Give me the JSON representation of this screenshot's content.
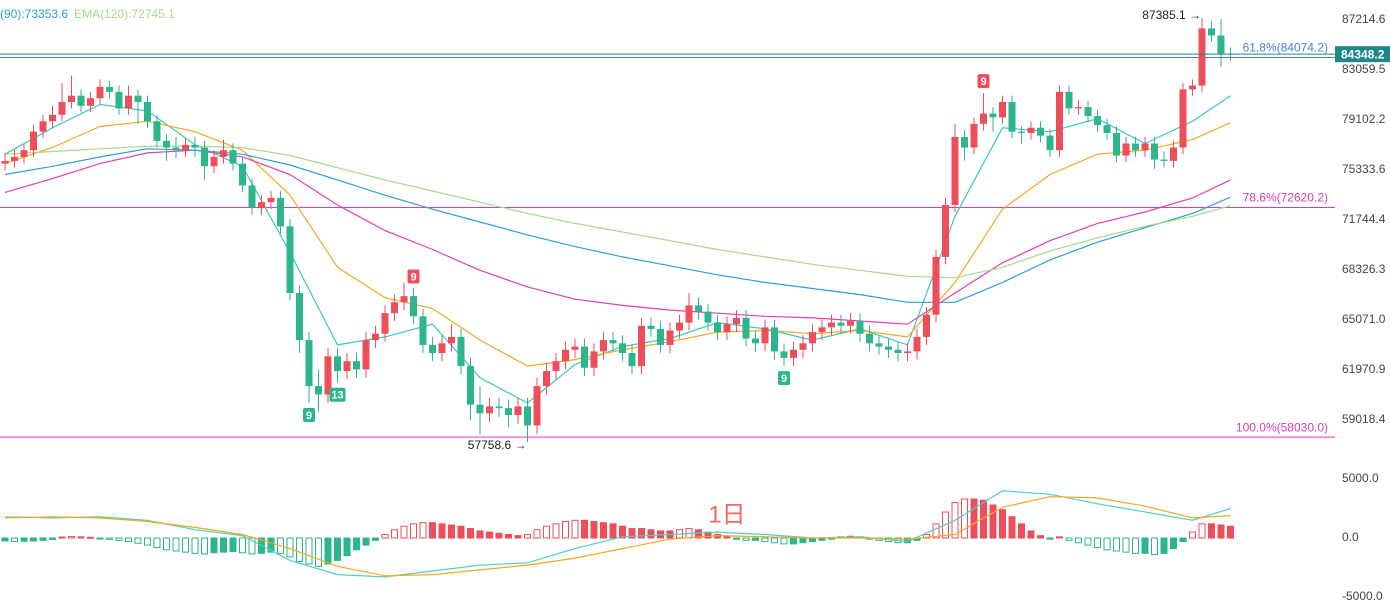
{
  "chart_data": {
    "type": "candlestick",
    "up_color": "#ee4d5a",
    "down_color": "#2db58e",
    "log_scale": true,
    "ylim": [
      56200,
      88930
    ],
    "yticks": [
      87214.6,
      83059.5,
      79102.2,
      75333.6,
      71744.4,
      68326.3,
      {
        "value": 65071,
        "label": "65071.0"
      },
      61970.9,
      59018.4
    ],
    "candles": [
      [
        75800,
        76600,
        75300,
        76000
      ],
      [
        76000,
        76800,
        75500,
        76300
      ],
      [
        76300,
        77300,
        75800,
        76800
      ],
      [
        76800,
        78700,
        76300,
        78200
      ],
      [
        78200,
        79500,
        77700,
        79000
      ],
      [
        79000,
        80200,
        78500,
        79500
      ],
      [
        79500,
        82000,
        79000,
        80500
      ],
      [
        80500,
        82600,
        80000,
        81000
      ],
      [
        81000,
        81500,
        79700,
        80200
      ],
      [
        80200,
        81300,
        79700,
        80800
      ],
      [
        80800,
        82300,
        80300,
        81700
      ],
      [
        81700,
        82200,
        80800,
        81300
      ],
      [
        81300,
        81800,
        79500,
        80000
      ],
      [
        80000,
        81800,
        79500,
        81000
      ],
      [
        81000,
        81500,
        78800,
        80500
      ],
      [
        80500,
        81000,
        78500,
        79000
      ],
      [
        79000,
        79500,
        77000,
        77500
      ],
      [
        77500,
        78000,
        76000,
        77000
      ],
      [
        77000,
        77800,
        76200,
        76800
      ],
      [
        76800,
        77700,
        76300,
        77200
      ],
      [
        77200,
        77800,
        76300,
        77000
      ],
      [
        77000,
        77500,
        74600,
        75600
      ],
      [
        75600,
        76800,
        75100,
        76300
      ],
      [
        76300,
        77600,
        75800,
        76800
      ],
      [
        76800,
        77300,
        75300,
        75800
      ],
      [
        75800,
        76300,
        73700,
        74200
      ],
      [
        74200,
        74700,
        72100,
        72600
      ],
      [
        72600,
        73500,
        72100,
        73000
      ],
      [
        73000,
        73800,
        72500,
        73300
      ],
      [
        73300,
        73800,
        70800,
        71300
      ],
      [
        71300,
        71800,
        66300,
        66800
      ],
      [
        66800,
        67300,
        63000,
        63800
      ],
      [
        63800,
        64300,
        60000,
        61000
      ],
      [
        61000,
        62000,
        59500,
        60500
      ],
      [
        60500,
        63300,
        60000,
        62800
      ],
      [
        62800,
        63300,
        61200,
        61900
      ],
      [
        61900,
        63000,
        61400,
        62500
      ],
      [
        62500,
        63000,
        61500,
        62000
      ],
      [
        62000,
        64300,
        61500,
        63800
      ],
      [
        63800,
        64700,
        63300,
        64200
      ],
      [
        64200,
        66000,
        63700,
        65500
      ],
      [
        65500,
        66700,
        65000,
        66200
      ],
      [
        66200,
        67500,
        65700,
        66600
      ],
      [
        66600,
        67100,
        64800,
        65300
      ],
      [
        65300,
        65800,
        63000,
        63500
      ],
      [
        63500,
        64000,
        62500,
        63000
      ],
      [
        63000,
        64100,
        62500,
        63600
      ],
      [
        63600,
        64800,
        63100,
        64000
      ],
      [
        64000,
        64500,
        61700,
        62200
      ],
      [
        62200,
        62700,
        59000,
        59900
      ],
      [
        59900,
        61000,
        58200,
        59400
      ],
      [
        59400,
        60300,
        58900,
        59800
      ],
      [
        59800,
        60300,
        59200,
        59700
      ],
      [
        59700,
        60200,
        58600,
        59300
      ],
      [
        59300,
        60300,
        58800,
        59800
      ],
      [
        59800,
        60300,
        57758.6,
        58700
      ],
      [
        58700,
        61500,
        58200,
        61000
      ],
      [
        61000,
        62400,
        60500,
        61900
      ],
      [
        61900,
        63000,
        61400,
        62500
      ],
      [
        62500,
        63700,
        62000,
        63200
      ],
      [
        63200,
        63900,
        62700,
        63400
      ],
      [
        63400,
        63900,
        61600,
        62100
      ],
      [
        62100,
        63600,
        61600,
        63100
      ],
      [
        63100,
        64300,
        62600,
        63800
      ],
      [
        63800,
        64300,
        63100,
        63600
      ],
      [
        63600,
        64100,
        62500,
        63000
      ],
      [
        63000,
        63500,
        61700,
        62200
      ],
      [
        62200,
        65200,
        61700,
        64700
      ],
      [
        64700,
        65200,
        64000,
        64500
      ],
      [
        64500,
        65000,
        63000,
        63500
      ],
      [
        63500,
        64900,
        63000,
        64400
      ],
      [
        64400,
        65400,
        63900,
        64900
      ],
      [
        64900,
        66800,
        64400,
        66000
      ],
      [
        66000,
        66500,
        65100,
        65600
      ],
      [
        65600,
        66100,
        64400,
        64900
      ],
      [
        64900,
        65400,
        63800,
        64300
      ],
      [
        64300,
        65300,
        63800,
        64800
      ],
      [
        64800,
        65700,
        64300,
        65200
      ],
      [
        65200,
        65700,
        63400,
        63900
      ],
      [
        63900,
        64400,
        63100,
        63600
      ],
      [
        63600,
        65100,
        63100,
        64600
      ],
      [
        64600,
        65100,
        62600,
        63100
      ],
      [
        63100,
        63600,
        62200,
        62700
      ],
      [
        62700,
        63700,
        62200,
        63200
      ],
      [
        63200,
        64100,
        62700,
        63600
      ],
      [
        63600,
        64800,
        63100,
        64300
      ],
      [
        64300,
        65100,
        63800,
        64600
      ],
      [
        64600,
        65400,
        64100,
        64900
      ],
      [
        64900,
        65400,
        64200,
        64700
      ],
      [
        64700,
        65500,
        64200,
        65000
      ],
      [
        65000,
        65500,
        63700,
        64200
      ],
      [
        64200,
        64700,
        63100,
        63600
      ],
      [
        63600,
        64100,
        62900,
        63400
      ],
      [
        63400,
        63900,
        62700,
        63200
      ],
      [
        63200,
        63700,
        62500,
        63000
      ],
      [
        63000,
        63600,
        62500,
        63100
      ],
      [
        63100,
        64500,
        62600,
        64000
      ],
      [
        64000,
        65900,
        63500,
        65400
      ],
      [
        65400,
        69700,
        64900,
        69200
      ],
      [
        69200,
        73300,
        68700,
        72800
      ],
      [
        72800,
        78800,
        72300,
        77800
      ],
      [
        77800,
        78300,
        76000,
        77000
      ],
      [
        77000,
        79300,
        76500,
        78800
      ],
      [
        78800,
        81200,
        78300,
        79600
      ],
      [
        79600,
        80100,
        78200,
        79300
      ],
      [
        79300,
        81000,
        78800,
        80500
      ],
      [
        80500,
        81000,
        77700,
        78200
      ],
      [
        78200,
        78600,
        77300,
        78100
      ],
      [
        78100,
        79000,
        77600,
        78500
      ],
      [
        78500,
        79000,
        77400,
        77900
      ],
      [
        77900,
        78400,
        76300,
        76800
      ],
      [
        76800,
        81800,
        76300,
        81300
      ],
      [
        81300,
        81800,
        79500,
        80000
      ],
      [
        80000,
        80600,
        79500,
        80100
      ],
      [
        80100,
        80600,
        78900,
        79400
      ],
      [
        79400,
        79900,
        78200,
        78700
      ],
      [
        78700,
        79200,
        77600,
        78100
      ],
      [
        78100,
        78600,
        75900,
        76400
      ],
      [
        76400,
        77800,
        75900,
        77300
      ],
      [
        77300,
        77800,
        76300,
        76800
      ],
      [
        76800,
        77800,
        76300,
        77300
      ],
      [
        77300,
        77800,
        75400,
        76100
      ],
      [
        76100,
        76700,
        75500,
        76000
      ],
      [
        76000,
        77500,
        75500,
        77000
      ],
      [
        77000,
        82000,
        76500,
        81500
      ],
      [
        81500,
        82300,
        81000,
        81800
      ],
      [
        81800,
        87385.1,
        81300,
        86500
      ],
      [
        86500,
        87100,
        85400,
        85900
      ],
      [
        85900,
        87300,
        83300,
        84400
      ],
      [
        84400,
        84900,
        83800,
        84348.2
      ]
    ],
    "last_price": 84348.2,
    "last_price_color": "#1e8787",
    "max_label": "87385.1 →",
    "min_label": "57758.6 →",
    "fib": [
      {
        "label": "61.8%(84074.2)",
        "value": 84074.2,
        "color": "#4a7fd4"
      },
      {
        "label": "78.6%(72620.2)",
        "value": 72620.2,
        "color": "#d63fb0"
      },
      {
        "label": "100.0%(58030.0)",
        "value": 58030,
        "color": "#d63fb0"
      }
    ],
    "td_marks": [
      {
        "x": 32,
        "label": "9",
        "color": "#2db58e"
      },
      {
        "x": 35,
        "label": "13",
        "color": "#2db58e"
      },
      {
        "x": 43,
        "label": "9",
        "color": "#ee4d5a"
      },
      {
        "x": 82,
        "label": "9",
        "color": "#2db58e"
      },
      {
        "x": 103,
        "label": "9",
        "color": "#ee4d5a"
      }
    ],
    "ema": {
      "x": [
        0,
        5,
        10,
        15,
        20,
        25,
        30,
        35,
        40,
        45,
        50,
        55,
        60,
        65,
        70,
        75,
        80,
        85,
        90,
        95,
        100,
        105,
        110,
        115,
        120,
        125,
        129
      ],
      "series": [
        {
          "color": "#3ec9c0",
          "values": [
            76500,
            78500,
            80300,
            79800,
            77200,
            75600,
            69500,
            63500,
            64000,
            64800,
            61500,
            60000,
            62300,
            63400,
            63900,
            64900,
            64500,
            63800,
            64500,
            63500,
            72000,
            78500,
            78200,
            79200,
            77300,
            79000,
            81000
          ]
        },
        {
          "color": "#f5a623",
          "values": [
            75800,
            77000,
            78600,
            79000,
            78200,
            76800,
            73500,
            68500,
            66500,
            65800,
            63800,
            62200,
            62600,
            63200,
            63700,
            64300,
            64400,
            64200,
            64400,
            64000,
            67500,
            72500,
            75000,
            76500,
            76800,
            77600,
            78900
          ]
        },
        {
          "color": "#e040b0",
          "values": [
            73700,
            74700,
            75800,
            76600,
            76800,
            76300,
            75000,
            72800,
            71000,
            69700,
            68300,
            67200,
            66400,
            66000,
            65700,
            65500,
            65300,
            65200,
            65000,
            64800,
            66800,
            68800,
            70300,
            71500,
            72300,
            73300,
            74600
          ]
        },
        {
          "name": "(90):73353.6",
          "color": "#2e9fd6",
          "values": [
            75000,
            75600,
            76300,
            76900,
            76800,
            76500,
            75700,
            74600,
            73500,
            72500,
            71600,
            70700,
            69900,
            69200,
            68600,
            68000,
            67500,
            67100,
            66700,
            66200,
            66200,
            67500,
            69000,
            70200,
            71200,
            72200,
            73353.6
          ]
        },
        {
          "name": "EMA(120):72745.1",
          "color": "#a6d98a",
          "values": [
            76500,
            76700,
            76900,
            77100,
            77100,
            77000,
            76400,
            75500,
            74600,
            73800,
            73000,
            72200,
            71500,
            70900,
            70300,
            69700,
            69200,
            68700,
            68300,
            67900,
            67800,
            68500,
            69600,
            70500,
            71300,
            72000,
            72745.1
          ]
        }
      ]
    },
    "macd": {
      "ylim": [
        -5593,
        5763
      ],
      "yticks": [
        {
          "value": 5000,
          "label": "5000.0"
        },
        {
          "value": 0,
          "label": "0.0"
        },
        {
          "value": -5000,
          "label": "-5000.0"
        }
      ],
      "histogram": [
        -250,
        -300,
        -280,
        -250,
        -200,
        -120,
        80,
        120,
        100,
        60,
        -50,
        -120,
        -200,
        -300,
        -450,
        -600,
        -800,
        -1000,
        -1100,
        -1200,
        -1300,
        -1350,
        -1250,
        -1200,
        -1150,
        -1250,
        -1350,
        -1300,
        -1200,
        -1300,
        -1600,
        -2000,
        -2200,
        -2400,
        -2200,
        -1900,
        -1500,
        -1000,
        -600,
        -200,
        300,
        700,
        1000,
        1200,
        1300,
        1300,
        1200,
        1100,
        1000,
        800,
        600,
        500,
        400,
        300,
        200,
        300,
        700,
        1000,
        1200,
        1400,
        1500,
        1500,
        1400,
        1300,
        1200,
        1000,
        800,
        800,
        700,
        600,
        600,
        700,
        800,
        700,
        500,
        300,
        100,
        -100,
        -200,
        -200,
        -300,
        -400,
        -500,
        -500,
        -400,
        -300,
        -200,
        -100,
        100,
        150,
        100,
        -100,
        -200,
        -300,
        -400,
        -400,
        -200,
        300,
        1200,
        2200,
        3000,
        3300,
        3300,
        3200,
        2800,
        2400,
        1800,
        1200,
        600,
        200,
        -100,
        100,
        -200,
        -400,
        -600,
        -800,
        -1000,
        -1100,
        -1200,
        -1300,
        -1300,
        -1400,
        -1300,
        -900,
        -300,
        500,
        1200,
        1200,
        1100,
        1000
      ],
      "x": [
        0,
        5,
        10,
        15,
        20,
        25,
        30,
        35,
        40,
        45,
        50,
        55,
        60,
        65,
        70,
        75,
        80,
        85,
        90,
        95,
        100,
        105,
        110,
        115,
        120,
        125,
        129
      ],
      "dif": {
        "color": "#4fd0c0",
        "values": [
          1800,
          1700,
          1800,
          1500,
          700,
          200,
          -1900,
          -3100,
          -3300,
          -2800,
          -2300,
          -2100,
          -900,
          100,
          300,
          500,
          300,
          0,
          100,
          -300,
          1500,
          4000,
          3700,
          2900,
          2200,
          1500,
          2500
        ]
      },
      "dea": {
        "color": "#f5a623",
        "values": [
          1700,
          1800,
          1700,
          1400,
          900,
          300,
          -900,
          -2400,
          -3200,
          -3100,
          -2700,
          -2300,
          -1700,
          -900,
          -100,
          200,
          100,
          0,
          0,
          -100,
          300,
          2600,
          3500,
          3400,
          2700,
          1700,
          1900
        ]
      }
    },
    "watermark": "1日"
  }
}
